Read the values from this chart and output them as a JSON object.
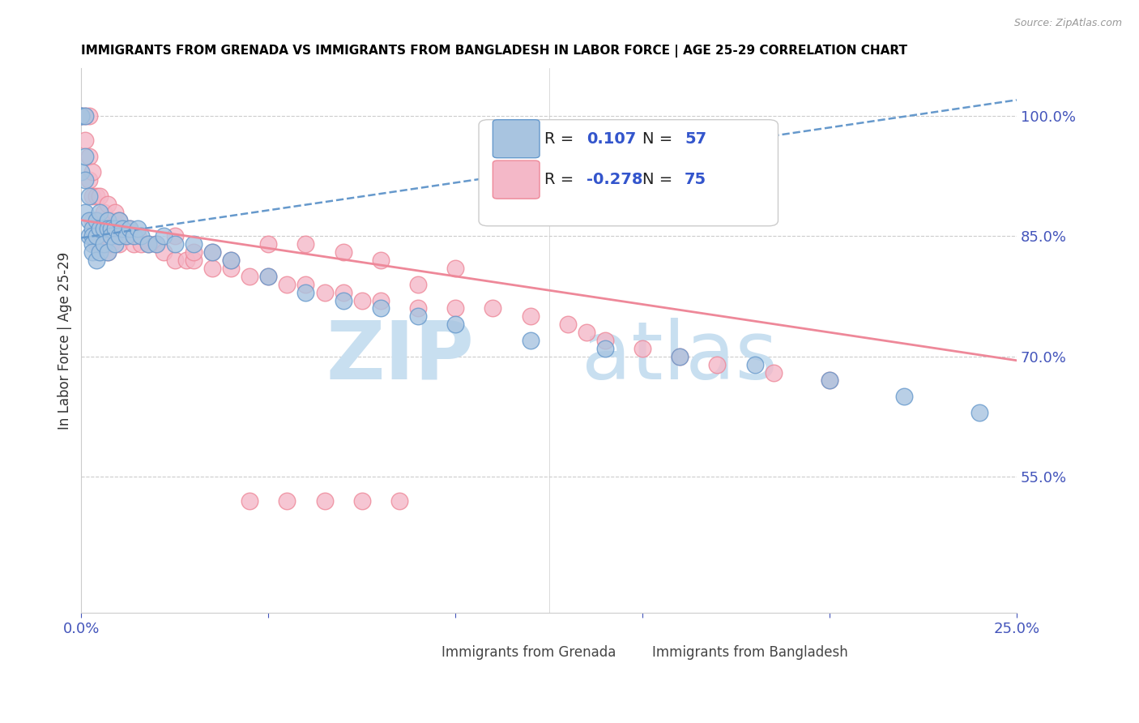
{
  "title": "IMMIGRANTS FROM GRENADA VS IMMIGRANTS FROM BANGLADESH IN LABOR FORCE | AGE 25-29 CORRELATION CHART",
  "source": "Source: ZipAtlas.com",
  "ylabel": "In Labor Force | Age 25-29",
  "xlim": [
    0.0,
    0.25
  ],
  "ylim": [
    0.38,
    1.06
  ],
  "ytick_labels_right": [
    "100.0%",
    "85.0%",
    "70.0%",
    "55.0%"
  ],
  "ytick_positions_right": [
    1.0,
    0.85,
    0.7,
    0.55
  ],
  "grenada_color": "#a8c4e0",
  "bangladesh_color": "#f4b8c8",
  "grenada_edge": "#6699cc",
  "bangladesh_edge": "#ee8899",
  "grenada_R": 0.107,
  "grenada_N": 57,
  "bangladesh_R": -0.278,
  "bangladesh_N": 75,
  "legend_grenada": "Immigrants from Grenada",
  "legend_bangladesh": "Immigrants from Bangladesh",
  "grenada_x": [
    0.0,
    0.0,
    0.0,
    0.001,
    0.001,
    0.001,
    0.001,
    0.002,
    0.002,
    0.002,
    0.003,
    0.003,
    0.003,
    0.003,
    0.004,
    0.004,
    0.004,
    0.005,
    0.005,
    0.005,
    0.006,
    0.006,
    0.007,
    0.007,
    0.007,
    0.008,
    0.008,
    0.009,
    0.009,
    0.01,
    0.01,
    0.011,
    0.012,
    0.013,
    0.014,
    0.015,
    0.016,
    0.018,
    0.02,
    0.022,
    0.025,
    0.03,
    0.035,
    0.04,
    0.05,
    0.06,
    0.07,
    0.08,
    0.09,
    0.1,
    0.12,
    0.14,
    0.16,
    0.18,
    0.2,
    0.22,
    0.24
  ],
  "grenada_y": [
    1.0,
    1.0,
    0.93,
    1.0,
    0.95,
    0.92,
    0.88,
    0.9,
    0.87,
    0.85,
    0.86,
    0.85,
    0.84,
    0.83,
    0.87,
    0.85,
    0.82,
    0.88,
    0.86,
    0.83,
    0.86,
    0.84,
    0.87,
    0.86,
    0.83,
    0.86,
    0.85,
    0.86,
    0.84,
    0.87,
    0.85,
    0.86,
    0.85,
    0.86,
    0.85,
    0.86,
    0.85,
    0.84,
    0.84,
    0.85,
    0.84,
    0.84,
    0.83,
    0.82,
    0.8,
    0.78,
    0.77,
    0.76,
    0.75,
    0.74,
    0.72,
    0.71,
    0.7,
    0.69,
    0.67,
    0.65,
    0.63
  ],
  "bangladesh_x": [
    0.0,
    0.001,
    0.001,
    0.002,
    0.002,
    0.002,
    0.003,
    0.003,
    0.003,
    0.004,
    0.004,
    0.004,
    0.005,
    0.005,
    0.005,
    0.006,
    0.006,
    0.007,
    0.007,
    0.007,
    0.008,
    0.008,
    0.009,
    0.009,
    0.01,
    0.01,
    0.011,
    0.012,
    0.013,
    0.014,
    0.015,
    0.016,
    0.018,
    0.02,
    0.022,
    0.025,
    0.028,
    0.03,
    0.035,
    0.04,
    0.045,
    0.05,
    0.055,
    0.06,
    0.065,
    0.07,
    0.075,
    0.08,
    0.09,
    0.1,
    0.06,
    0.07,
    0.08,
    0.1,
    0.09,
    0.05,
    0.035,
    0.04,
    0.025,
    0.03,
    0.12,
    0.135,
    0.15,
    0.17,
    0.2,
    0.185,
    0.16,
    0.14,
    0.13,
    0.11,
    0.045,
    0.055,
    0.065,
    0.075,
    0.085
  ],
  "bangladesh_y": [
    1.0,
    1.0,
    0.97,
    1.0,
    0.95,
    0.92,
    0.93,
    0.9,
    0.87,
    0.9,
    0.87,
    0.84,
    0.9,
    0.87,
    0.84,
    0.88,
    0.85,
    0.89,
    0.86,
    0.83,
    0.87,
    0.84,
    0.88,
    0.85,
    0.87,
    0.84,
    0.86,
    0.85,
    0.86,
    0.84,
    0.85,
    0.84,
    0.84,
    0.84,
    0.83,
    0.82,
    0.82,
    0.82,
    0.81,
    0.81,
    0.8,
    0.8,
    0.79,
    0.79,
    0.78,
    0.78,
    0.77,
    0.77,
    0.76,
    0.76,
    0.84,
    0.83,
    0.82,
    0.81,
    0.79,
    0.84,
    0.83,
    0.82,
    0.85,
    0.83,
    0.75,
    0.73,
    0.71,
    0.69,
    0.67,
    0.68,
    0.7,
    0.72,
    0.74,
    0.76,
    0.52,
    0.52,
    0.52,
    0.52,
    0.52
  ],
  "trend_grenada_x0": 0.0,
  "trend_grenada_y0": 0.848,
  "trend_grenada_x1": 0.25,
  "trend_grenada_y1": 1.02,
  "trend_bangladesh_x0": 0.0,
  "trend_bangladesh_y0": 0.87,
  "trend_bangladesh_x1": 0.25,
  "trend_bangladesh_y1": 0.695
}
